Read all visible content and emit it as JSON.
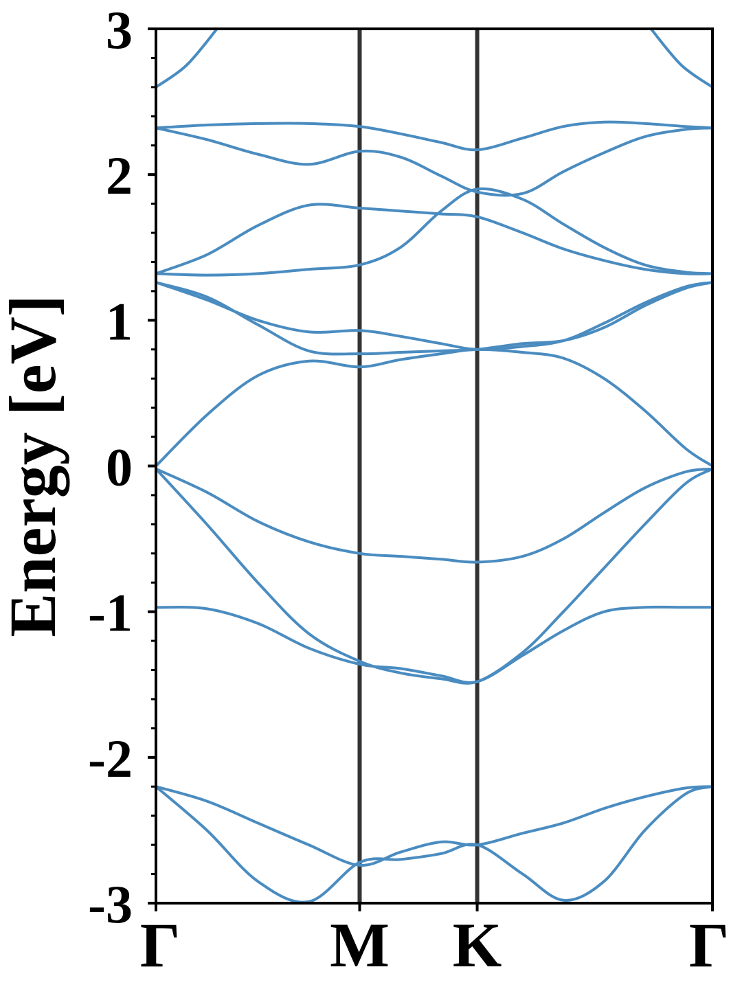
{
  "chart_data": {
    "type": "line",
    "title": "",
    "xlabel": "",
    "ylabel": "Energy [eV]",
    "ylim": [
      -3,
      3
    ],
    "y_ticks": [
      "3",
      "2",
      "1",
      "0",
      "-1",
      "-2",
      "-3"
    ],
    "y_tick_values": [
      3,
      2,
      1,
      0,
      -1,
      -2,
      -3
    ],
    "y_minor_step": 0.2,
    "k_points": [
      {
        "label": "Γ",
        "x": 0.0
      },
      {
        "label": "M",
        "x": 1.0
      },
      {
        "label": "K",
        "x": 1.577
      },
      {
        "label": "Γ",
        "x": 2.732
      }
    ],
    "grid": false,
    "legend": "none",
    "line_color": "#4a8cc0",
    "separator_color": "#333333",
    "x_range": [
      0,
      2.732
    ],
    "series": [
      {
        "x": [
          0,
          0.25,
          0.5,
          0.75,
          1.0,
          1.2,
          1.4,
          1.577,
          1.8,
          2.0,
          2.2,
          2.4,
          2.6,
          2.732
        ],
        "values": [
          -2.2,
          -2.5,
          -2.85,
          -2.99,
          -2.72,
          -2.7,
          -2.66,
          -2.6,
          -2.8,
          -2.98,
          -2.85,
          -2.5,
          -2.25,
          -2.2
        ]
      },
      {
        "x": [
          0,
          0.25,
          0.5,
          0.75,
          1.0,
          1.2,
          1.4,
          1.577,
          1.8,
          2.0,
          2.2,
          2.4,
          2.6,
          2.732
        ],
        "values": [
          -2.2,
          -2.3,
          -2.45,
          -2.6,
          -2.74,
          -2.65,
          -2.58,
          -2.6,
          -2.52,
          -2.45,
          -2.35,
          -2.27,
          -2.21,
          -2.2
        ]
      },
      {
        "x": [
          0,
          0.25,
          0.5,
          0.75,
          1.0,
          1.2,
          1.4,
          1.577,
          1.8,
          2.0,
          2.2,
          2.4,
          2.6,
          2.732
        ],
        "values": [
          -0.97,
          -0.98,
          -1.08,
          -1.25,
          -1.36,
          -1.39,
          -1.44,
          -1.48,
          -1.3,
          -1.13,
          -1.0,
          -0.97,
          -0.97,
          -0.97
        ]
      },
      {
        "x": [
          0,
          0.25,
          0.5,
          0.75,
          1.0,
          1.2,
          1.4,
          1.577,
          1.8,
          2.0,
          2.2,
          2.4,
          2.6,
          2.732
        ],
        "values": [
          -0.02,
          -0.4,
          -0.8,
          -1.15,
          -1.34,
          -1.42,
          -1.46,
          -1.48,
          -1.28,
          -1.0,
          -0.7,
          -0.4,
          -0.12,
          -0.02
        ]
      },
      {
        "x": [
          0,
          0.25,
          0.5,
          0.75,
          1.0,
          1.2,
          1.4,
          1.577,
          1.8,
          2.0,
          2.2,
          2.4,
          2.6,
          2.732
        ],
        "values": [
          -0.02,
          -0.18,
          -0.38,
          -0.52,
          -0.6,
          -0.62,
          -0.64,
          -0.66,
          -0.62,
          -0.5,
          -0.32,
          -0.15,
          -0.04,
          -0.02
        ]
      },
      {
        "x": [
          0,
          0.25,
          0.5,
          0.75,
          1.0,
          1.2,
          1.4,
          1.577,
          1.8,
          2.0,
          2.2,
          2.4,
          2.6,
          2.732
        ],
        "values": [
          0.0,
          0.35,
          0.62,
          0.72,
          0.68,
          0.73,
          0.77,
          0.8,
          0.78,
          0.74,
          0.6,
          0.38,
          0.12,
          0.0
        ]
      },
      {
        "x": [
          0,
          0.25,
          0.5,
          0.75,
          1.0,
          1.2,
          1.4,
          1.577,
          1.8,
          2.0,
          2.2,
          2.4,
          2.6,
          2.732
        ],
        "values": [
          1.26,
          1.16,
          0.97,
          0.79,
          0.77,
          0.78,
          0.79,
          0.8,
          0.84,
          0.86,
          0.95,
          1.1,
          1.22,
          1.26
        ]
      },
      {
        "x": [
          0,
          0.25,
          0.5,
          0.75,
          1.0,
          1.2,
          1.4,
          1.577,
          1.8,
          2.0,
          2.2,
          2.4,
          2.6,
          2.732
        ],
        "values": [
          1.26,
          1.14,
          1.0,
          0.92,
          0.93,
          0.89,
          0.84,
          0.8,
          0.82,
          0.86,
          0.98,
          1.12,
          1.23,
          1.26
        ]
      },
      {
        "x": [
          0,
          0.25,
          0.5,
          0.75,
          1.0,
          1.2,
          1.4,
          1.577,
          1.8,
          2.0,
          2.2,
          2.4,
          2.6,
          2.732
        ],
        "values": [
          1.32,
          1.31,
          1.32,
          1.35,
          1.38,
          1.5,
          1.75,
          1.9,
          1.83,
          1.66,
          1.5,
          1.38,
          1.33,
          1.32
        ]
      },
      {
        "x": [
          0,
          0.25,
          0.5,
          0.75,
          1.0,
          1.2,
          1.4,
          1.577,
          1.8,
          2.0,
          2.2,
          2.4,
          2.6,
          2.732
        ],
        "values": [
          1.32,
          1.45,
          1.65,
          1.79,
          1.77,
          1.75,
          1.73,
          1.71,
          1.6,
          1.49,
          1.41,
          1.35,
          1.32,
          1.32
        ]
      },
      {
        "x": [
          0,
          0.25,
          0.5,
          0.75,
          1.0,
          1.2,
          1.4,
          1.577,
          1.8,
          2.0,
          2.2,
          2.4,
          2.6,
          2.732
        ],
        "values": [
          2.32,
          2.24,
          2.14,
          2.07,
          2.16,
          2.12,
          1.99,
          1.88,
          1.87,
          2.02,
          2.15,
          2.26,
          2.31,
          2.32
        ]
      },
      {
        "x": [
          0,
          0.25,
          0.5,
          0.75,
          1.0,
          1.2,
          1.4,
          1.577,
          1.8,
          2.0,
          2.2,
          2.4,
          2.6,
          2.732
        ],
        "values": [
          2.32,
          2.34,
          2.35,
          2.35,
          2.33,
          2.28,
          2.22,
          2.17,
          2.25,
          2.33,
          2.36,
          2.35,
          2.33,
          2.32
        ]
      },
      {
        "x": [
          0,
          0.15,
          0.3
        ],
        "values": [
          2.6,
          2.75,
          3.0
        ]
      },
      {
        "x": [
          2.43,
          2.58,
          2.732
        ],
        "values": [
          3.0,
          2.75,
          2.6
        ]
      }
    ]
  }
}
